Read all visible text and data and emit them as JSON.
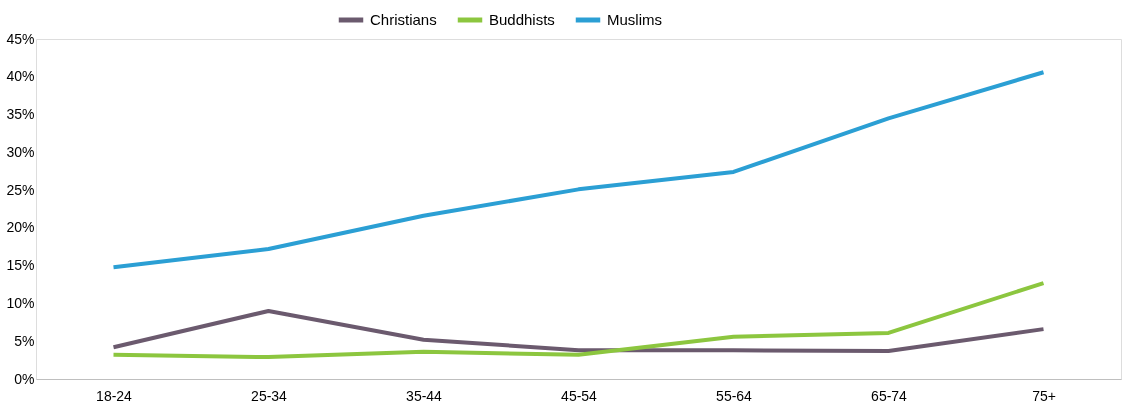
{
  "chart_data": {
    "type": "line",
    "categories": [
      "18-24",
      "25-34",
      "35-44",
      "45-54",
      "55-64",
      "65-74",
      "75+"
    ],
    "series": [
      {
        "name": "Christians",
        "color": "#6b5a6e",
        "values": [
          4.2,
          9.0,
          5.2,
          3.8,
          3.8,
          3.7,
          6.6
        ]
      },
      {
        "name": "Buddhists",
        "color": "#8cc63f",
        "values": [
          3.2,
          2.9,
          3.6,
          3.2,
          5.6,
          6.1,
          12.7
        ]
      },
      {
        "name": "Muslims",
        "color": "#2b9fd4",
        "values": [
          14.8,
          17.2,
          21.6,
          25.1,
          27.4,
          34.5,
          40.6
        ]
      }
    ],
    "ylim": [
      0,
      45
    ],
    "yticks": [
      {
        "value": 0,
        "label": "0%"
      },
      {
        "value": 5,
        "label": "5%"
      },
      {
        "value": 10,
        "label": "10%"
      },
      {
        "value": 15,
        "label": "15%"
      },
      {
        "value": 20,
        "label": "20%"
      },
      {
        "value": 25,
        "label": "25%"
      },
      {
        "value": 30,
        "label": "30%"
      },
      {
        "value": 35,
        "label": "35%"
      },
      {
        "value": 40,
        "label": "40%"
      },
      {
        "value": 45,
        "label": "45%"
      }
    ],
    "legend": "top",
    "grid": false,
    "marker": "none",
    "line_style": "solid"
  }
}
